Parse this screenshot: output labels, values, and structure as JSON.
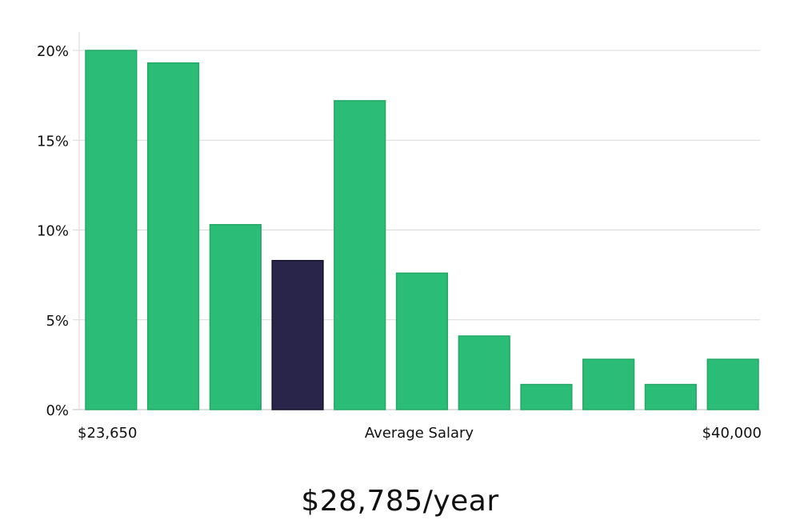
{
  "chart_data": {
    "type": "bar",
    "values": [
      20.0,
      19.3,
      10.3,
      8.3,
      17.2,
      7.6,
      4.1,
      1.4,
      2.8,
      1.4,
      2.8
    ],
    "highlight_index": 3,
    "ylim": [
      0,
      20
    ],
    "y_ticks": [
      {
        "value": 0,
        "label": "0%"
      },
      {
        "value": 5,
        "label": "5%"
      },
      {
        "value": 10,
        "label": "10%"
      },
      {
        "value": 15,
        "label": "15%"
      },
      {
        "value": 20,
        "label": "20%"
      }
    ],
    "x_min_label": "$23,650",
    "x_center_label": "Average Salary",
    "x_max_label": "$40,000",
    "grid": true,
    "colors": {
      "bar": "#2bbd78",
      "bar_stroke": "#23a866",
      "highlight": "#28244a",
      "highlight_stroke": "#14122b",
      "grid": "#d9d9d9",
      "axis": "#bfbfbf"
    }
  },
  "average_salary_text": "$28,785/year"
}
